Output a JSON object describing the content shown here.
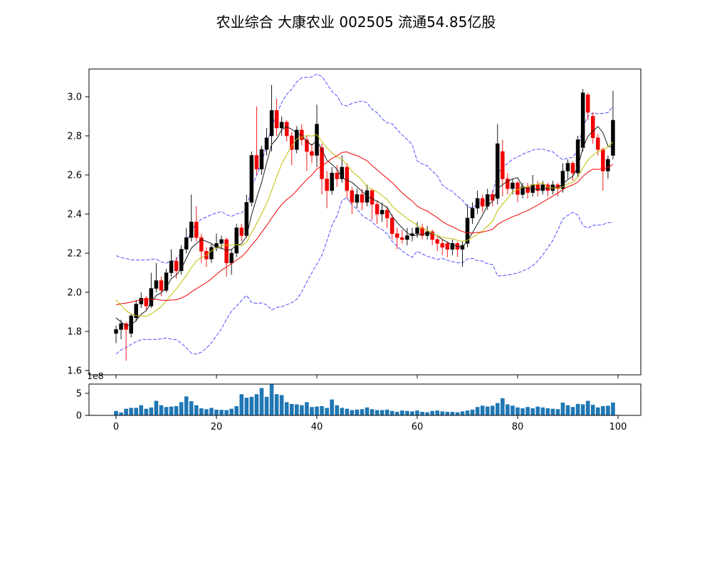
{
  "chart_data": {
    "type": "candlestick",
    "title": "农业综合 大康农业 002505 流通54.85亿股",
    "price_axis": {
      "tick_labels": [
        "1.6",
        "1.8",
        "2.0",
        "2.2",
        "2.4",
        "2.6",
        "2.8",
        "3.0"
      ],
      "tick_values": [
        1.6,
        1.8,
        2.0,
        2.2,
        2.4,
        2.6,
        2.8,
        3.0
      ],
      "ylim": [
        1.58,
        3.14
      ]
    },
    "x_axis": {
      "tick_labels": [
        "0",
        "20",
        "40",
        "60",
        "80",
        "100"
      ],
      "tick_values": [
        0,
        20,
        40,
        60,
        80,
        100
      ],
      "xlim": [
        -5.4,
        104.5
      ]
    },
    "volume_axis": {
      "tick_labels": [
        "0",
        "5"
      ],
      "tick_values": [
        0,
        5
      ],
      "offset_label": "1e8",
      "ylim": [
        0,
        7.1
      ]
    },
    "indicators": {
      "ma_windows": [
        5,
        10,
        20
      ],
      "band_window": 20,
      "band_mult": 2,
      "pad_closes": [
        1.7,
        1.72,
        1.75,
        1.78,
        1.82,
        1.86,
        1.92,
        1.98,
        2.05,
        2.11,
        2.13,
        2.11,
        2.08,
        2.05,
        2.02,
        1.99,
        1.95,
        1.9,
        1.86,
        1.83
      ]
    },
    "colors": {
      "up": "#000000",
      "down": "#f20000",
      "ma5": "#1c1c1c",
      "ma10": "#bfbf00",
      "ma20": "#f20000",
      "band": "#4d4dff",
      "volume": "#1f77b4",
      "axis": "#000000",
      "background": "#ffffff"
    },
    "ohlc": [
      [
        1.79,
        1.83,
        1.74,
        1.81
      ],
      [
        1.81,
        1.86,
        1.76,
        1.84
      ],
      [
        1.84,
        1.85,
        1.65,
        1.81
      ],
      [
        1.79,
        1.89,
        1.77,
        1.88
      ],
      [
        1.87,
        1.96,
        1.85,
        1.94
      ],
      [
        1.94,
        2.0,
        1.92,
        1.97
      ],
      [
        1.97,
        1.98,
        1.91,
        1.93
      ],
      [
        1.93,
        2.1,
        1.92,
        2.02
      ],
      [
        2.02,
        2.15,
        2.0,
        2.06
      ],
      [
        2.06,
        2.08,
        1.98,
        2.01
      ],
      [
        2.01,
        2.12,
        2.0,
        2.1
      ],
      [
        2.1,
        2.22,
        2.08,
        2.16
      ],
      [
        2.16,
        2.18,
        2.07,
        2.11
      ],
      [
        2.11,
        2.24,
        2.09,
        2.22
      ],
      [
        2.22,
        2.33,
        2.2,
        2.28
      ],
      [
        2.28,
        2.5,
        2.26,
        2.36
      ],
      [
        2.36,
        2.44,
        2.26,
        2.28
      ],
      [
        2.28,
        2.3,
        2.15,
        2.21
      ],
      [
        2.21,
        2.23,
        2.13,
        2.17
      ],
      [
        2.17,
        2.25,
        2.15,
        2.23
      ],
      [
        2.23,
        2.3,
        2.21,
        2.25
      ],
      [
        2.25,
        2.29,
        2.22,
        2.27
      ],
      [
        2.27,
        2.28,
        2.08,
        2.15
      ],
      [
        2.15,
        2.22,
        2.09,
        2.2
      ],
      [
        2.2,
        2.35,
        2.18,
        2.33
      ],
      [
        2.33,
        2.35,
        2.26,
        2.29
      ],
      [
        2.29,
        2.5,
        2.28,
        2.46
      ],
      [
        2.46,
        2.72,
        2.44,
        2.7
      ],
      [
        2.7,
        2.95,
        2.6,
        2.63
      ],
      [
        2.63,
        2.75,
        2.6,
        2.73
      ],
      [
        2.73,
        2.84,
        2.7,
        2.79
      ],
      [
        2.8,
        3.06,
        2.72,
        2.93
      ],
      [
        2.93,
        2.99,
        2.8,
        2.84
      ],
      [
        2.84,
        2.9,
        2.8,
        2.87
      ],
      [
        2.87,
        2.88,
        2.77,
        2.8
      ],
      [
        2.8,
        2.82,
        2.65,
        2.73
      ],
      [
        2.73,
        2.85,
        2.71,
        2.83
      ],
      [
        2.83,
        2.86,
        2.75,
        2.78
      ],
      [
        2.78,
        2.8,
        2.62,
        2.72
      ],
      [
        2.72,
        2.76,
        2.66,
        2.7
      ],
      [
        2.7,
        2.96,
        2.64,
        2.86
      ],
      [
        2.74,
        2.76,
        2.5,
        2.58
      ],
      [
        2.58,
        2.62,
        2.43,
        2.52
      ],
      [
        2.52,
        2.64,
        2.5,
        2.61
      ],
      [
        2.61,
        2.65,
        2.54,
        2.58
      ],
      [
        2.58,
        2.7,
        2.56,
        2.64
      ],
      [
        2.64,
        2.66,
        2.48,
        2.52
      ],
      [
        2.52,
        2.54,
        2.4,
        2.46
      ],
      [
        2.46,
        2.53,
        2.43,
        2.5
      ],
      [
        2.5,
        2.53,
        2.42,
        2.46
      ],
      [
        2.46,
        2.55,
        2.44,
        2.52
      ],
      [
        2.52,
        2.53,
        2.37,
        2.45
      ],
      [
        2.45,
        2.47,
        2.35,
        2.4
      ],
      [
        2.4,
        2.46,
        2.36,
        2.42
      ],
      [
        2.42,
        2.44,
        2.33,
        2.38
      ],
      [
        2.38,
        2.4,
        2.27,
        2.3
      ],
      [
        2.3,
        2.33,
        2.22,
        2.28
      ],
      [
        2.28,
        2.32,
        2.25,
        2.27
      ],
      [
        2.27,
        2.33,
        2.24,
        2.29
      ],
      [
        2.29,
        2.33,
        2.26,
        2.3
      ],
      [
        2.3,
        2.36,
        2.28,
        2.33
      ],
      [
        2.33,
        2.35,
        2.27,
        2.29
      ],
      [
        2.29,
        2.34,
        2.27,
        2.31
      ],
      [
        2.31,
        2.32,
        2.24,
        2.27
      ],
      [
        2.27,
        2.29,
        2.21,
        2.25
      ],
      [
        2.25,
        2.27,
        2.19,
        2.23
      ],
      [
        2.25,
        2.26,
        2.18,
        2.22
      ],
      [
        2.22,
        2.27,
        2.19,
        2.25
      ],
      [
        2.25,
        2.26,
        2.18,
        2.22
      ],
      [
        2.22,
        2.26,
        2.13,
        2.24
      ],
      [
        2.25,
        2.45,
        2.23,
        2.38
      ],
      [
        2.38,
        2.46,
        2.35,
        2.43
      ],
      [
        2.43,
        2.52,
        2.4,
        2.48
      ],
      [
        2.48,
        2.5,
        2.41,
        2.44
      ],
      [
        2.44,
        2.53,
        2.42,
        2.5
      ],
      [
        2.5,
        2.52,
        2.44,
        2.47
      ],
      [
        2.48,
        2.86,
        2.45,
        2.76
      ],
      [
        2.72,
        2.78,
        2.49,
        2.58
      ],
      [
        2.58,
        2.61,
        2.5,
        2.53
      ],
      [
        2.53,
        2.58,
        2.5,
        2.56
      ],
      [
        2.56,
        2.57,
        2.46,
        2.5
      ],
      [
        2.5,
        2.56,
        2.48,
        2.54
      ],
      [
        2.54,
        2.56,
        2.48,
        2.51
      ],
      [
        2.51,
        2.6,
        2.49,
        2.55
      ],
      [
        2.55,
        2.57,
        2.49,
        2.52
      ],
      [
        2.52,
        2.57,
        2.5,
        2.55
      ],
      [
        2.55,
        2.56,
        2.49,
        2.52
      ],
      [
        2.52,
        2.57,
        2.5,
        2.55
      ],
      [
        2.55,
        2.56,
        2.49,
        2.53
      ],
      [
        2.53,
        2.66,
        2.51,
        2.62
      ],
      [
        2.62,
        2.68,
        2.58,
        2.66
      ],
      [
        2.66,
        2.67,
        2.57,
        2.61
      ],
      [
        2.61,
        2.8,
        2.59,
        2.78
      ],
      [
        2.74,
        3.04,
        2.72,
        3.02
      ],
      [
        3.01,
        3.02,
        2.88,
        2.92
      ],
      [
        2.9,
        2.92,
        2.76,
        2.79
      ],
      [
        2.79,
        2.81,
        2.7,
        2.73
      ],
      [
        2.73,
        2.74,
        2.52,
        2.62
      ],
      [
        2.62,
        2.7,
        2.58,
        2.68
      ],
      [
        2.7,
        3.03,
        2.68,
        2.88
      ]
    ],
    "volumes": [
      1.0,
      0.65,
      1.5,
      1.7,
      1.7,
      2.3,
      1.5,
      1.8,
      3.3,
      2.3,
      1.9,
      2.0,
      2.1,
      3.0,
      4.3,
      3.2,
      2.3,
      1.6,
      1.4,
      1.7,
      1.3,
      1.25,
      1.2,
      1.5,
      2.1,
      4.8,
      4.0,
      4.2,
      4.8,
      6.2,
      4.2,
      7.0,
      4.8,
      4.6,
      3.0,
      2.6,
      2.5,
      2.3,
      3.0,
      1.9,
      2.0,
      2.1,
      1.7,
      3.6,
      2.3,
      1.7,
      1.5,
      1.2,
      1.3,
      1.4,
      1.8,
      1.4,
      1.2,
      1.2,
      1.3,
      1.0,
      0.8,
      1.1,
      1.0,
      0.9,
      1.1,
      0.8,
      0.7,
      1.0,
      1.1,
      0.9,
      0.8,
      0.8,
      0.7,
      0.9,
      1.1,
      1.3,
      1.9,
      2.2,
      2.0,
      2.2,
      2.8,
      3.9,
      2.5,
      2.2,
      1.8,
      1.6,
      1.9,
      1.6,
      2.0,
      1.8,
      1.6,
      1.5,
      1.4,
      2.9,
      2.3,
      1.9,
      2.6,
      2.5,
      3.3,
      2.4,
      1.8,
      2.1,
      2.2,
      2.9
    ]
  }
}
